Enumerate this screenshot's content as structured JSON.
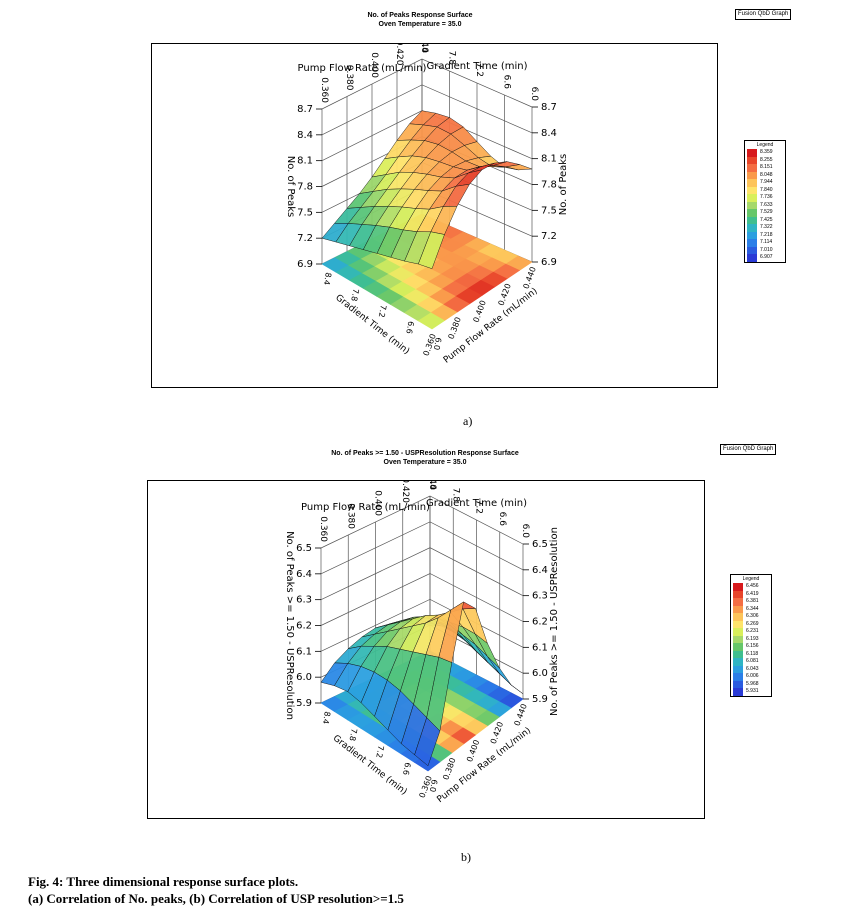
{
  "chart_data": [
    {
      "type": "surface3d",
      "title": "No. of Peaks Response Surface",
      "subtitle": "Oven Temperature = 35.0",
      "brand": "Fusion QbD Graph",
      "panel_label": "a)",
      "x_axis": {
        "label": "Pump Flow Rate (mL/min)",
        "ticks": [
          "0.360",
          "0.380",
          "0.400",
          "0.420",
          "0.440"
        ],
        "range": [
          0.36,
          0.44
        ]
      },
      "y_axis": {
        "label": "Gradient Time (min)",
        "ticks": [
          "8.4",
          "7.8",
          "7.2",
          "6.6",
          "6.0"
        ],
        "range": [
          6.0,
          8.4
        ]
      },
      "z_axis": {
        "label": "No. of Peaks",
        "ticks": [
          "6.9",
          "7.2",
          "7.5",
          "7.8",
          "8.1",
          "8.4",
          "8.7"
        ],
        "range": [
          6.9,
          8.7
        ]
      },
      "floor_x_ticks": [
        "0.360",
        "0.380",
        "0.400",
        "0.420",
        "0.440"
      ],
      "floor_y_ticks": [
        "6.0",
        "6.6",
        "7.2",
        "7.8",
        "8.4"
      ],
      "floor_x_label": "Pump Flow Rate (mL/min)",
      "floor_y_label": "Gradient Time (min)",
      "legend": {
        "title": "Legend",
        "values": [
          "8.359",
          "8.255",
          "8.151",
          "8.048",
          "7.944",
          "7.840",
          "7.736",
          "7.633",
          "7.529",
          "7.425",
          "7.322",
          "7.218",
          "7.114",
          "7.010",
          "6.907"
        ],
        "colors": [
          "#d7191c",
          "#e8452a",
          "#f46d43",
          "#fa9a4b",
          "#fdc45a",
          "#fee46b",
          "#d9ef5b",
          "#a6d96a",
          "#66c76a",
          "#3fbf8f",
          "#2fb5c4",
          "#2b9fe0",
          "#2b7fe8",
          "#2a5ce0",
          "#2a3bd6"
        ]
      },
      "surface_grid": [
        [
          8.1,
          8.02,
          7.9,
          7.76,
          7.62,
          7.5,
          7.4,
          7.3,
          7.2
        ],
        [
          8.14,
          8.08,
          7.98,
          7.86,
          7.73,
          7.61,
          7.5,
          7.39,
          7.25
        ],
        [
          8.16,
          8.13,
          8.05,
          7.95,
          7.84,
          7.72,
          7.6,
          7.47,
          7.3
        ],
        [
          8.12,
          8.12,
          8.08,
          8.01,
          7.92,
          7.81,
          7.69,
          7.55,
          7.35
        ],
        [
          8.02,
          8.06,
          8.07,
          8.04,
          7.98,
          7.89,
          7.77,
          7.62,
          7.4
        ],
        [
          7.92,
          7.99,
          8.04,
          8.06,
          8.03,
          7.96,
          7.84,
          7.68,
          7.45
        ],
        [
          7.86,
          7.96,
          8.05,
          8.1,
          8.1,
          8.04,
          7.92,
          7.75,
          7.5
        ],
        [
          7.9,
          8.03,
          8.14,
          8.22,
          8.24,
          8.18,
          8.04,
          7.84,
          7.56
        ],
        [
          7.98,
          8.13,
          8.26,
          8.34,
          8.36,
          8.29,
          8.13,
          7.9,
          7.6
        ]
      ]
    },
    {
      "type": "surface3d",
      "title": "No. of Peaks >= 1.50 - USPResolution Response Surface",
      "subtitle": "Oven Temperature = 35.0",
      "brand": "Fusion QbD Graph",
      "panel_label": "b)",
      "x_axis": {
        "label": "Pump Flow Rate (mL/min)",
        "ticks": [
          "0.360",
          "0.380",
          "0.400",
          "0.420",
          "0.440"
        ],
        "range": [
          0.36,
          0.44
        ]
      },
      "y_axis": {
        "label": "Gradient Time (min)",
        "ticks": [
          "8.4",
          "7.8",
          "7.2",
          "6.6",
          "6.0"
        ],
        "range": [
          6.0,
          8.4
        ]
      },
      "z_axis": {
        "label": "No. of Peaks >= 1.50 - USPResolution",
        "ticks": [
          "5.9",
          "6.0",
          "6.1",
          "6.2",
          "6.3",
          "6.4",
          "6.5"
        ],
        "range": [
          5.9,
          6.5
        ]
      },
      "floor_x_ticks": [
        "0.360",
        "0.380",
        "0.400",
        "0.420",
        "0.440"
      ],
      "floor_y_ticks": [
        "6.0",
        "6.6",
        "7.2",
        "7.8",
        "8.4"
      ],
      "floor_x_label": "Pump Flow Rate (mL/min)",
      "floor_y_label": "Gradient Time (min)",
      "legend": {
        "title": "Legend",
        "values": [
          "6.456",
          "6.419",
          "6.381",
          "6.344",
          "6.306",
          "6.269",
          "6.231",
          "6.193",
          "6.156",
          "6.118",
          "6.081",
          "6.043",
          "6.006",
          "5.968",
          "5.931"
        ],
        "colors": [
          "#d7191c",
          "#e8452a",
          "#f46d43",
          "#fa9a4b",
          "#fdc45a",
          "#fee46b",
          "#d9ef5b",
          "#a6d96a",
          "#66c76a",
          "#3fbf8f",
          "#2fb5c4",
          "#2b9fe0",
          "#2b7fe8",
          "#2a5ce0",
          "#2a3bd6"
        ]
      },
      "surface_grid": [
        [
          6.0,
          6.03,
          6.06,
          6.08,
          6.09,
          6.08,
          6.06,
          6.03,
          5.98
        ],
        [
          6.02,
          6.06,
          6.1,
          6.12,
          6.13,
          6.12,
          6.1,
          6.06,
          6.0
        ],
        [
          6.02,
          6.08,
          6.13,
          6.16,
          6.17,
          6.16,
          6.13,
          6.08,
          6.01
        ],
        [
          6.01,
          6.08,
          6.14,
          6.19,
          6.21,
          6.2,
          6.16,
          6.09,
          6.0
        ],
        [
          5.99,
          6.07,
          6.15,
          6.21,
          6.25,
          6.24,
          6.18,
          6.09,
          5.98
        ],
        [
          5.97,
          6.05,
          6.14,
          6.22,
          6.28,
          6.28,
          6.2,
          6.08,
          5.96
        ],
        [
          5.95,
          6.03,
          6.13,
          6.23,
          6.32,
          6.33,
          6.22,
          6.06,
          5.94
        ],
        [
          5.93,
          6.01,
          6.11,
          6.23,
          6.36,
          6.39,
          6.24,
          6.04,
          5.93
        ],
        [
          5.92,
          5.99,
          6.09,
          6.22,
          6.39,
          6.45,
          6.25,
          6.02,
          5.92
        ]
      ]
    }
  ],
  "caption": {
    "line1": "Fig. 4: Three dimensional response surface plots.",
    "line2": "(a) Correlation of No. peaks, (b) Correlation of USP resolution>=1.5"
  }
}
